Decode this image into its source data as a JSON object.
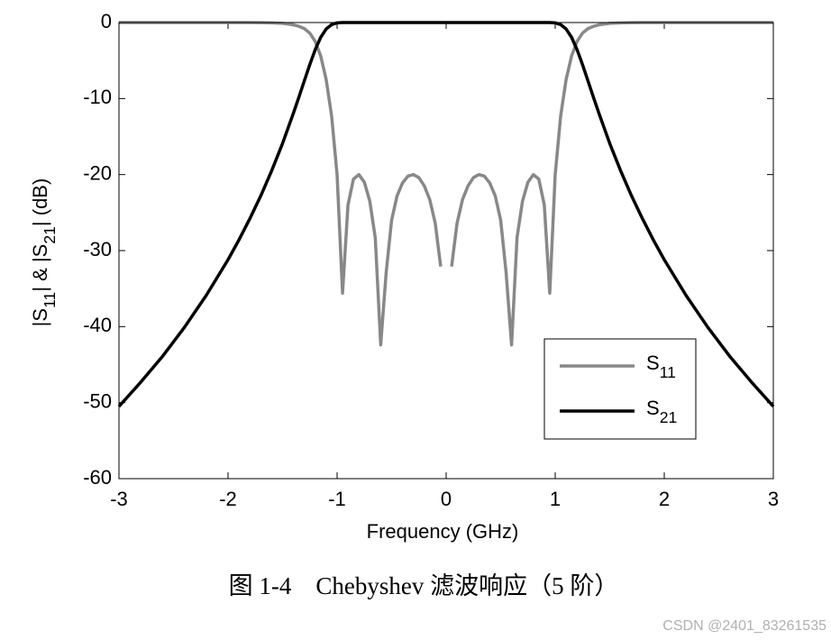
{
  "chart_data": {
    "type": "line",
    "xlabel": "Frequency (GHz)",
    "ylabel": "|S11| & |S21| (dB)",
    "caption": "图 1-4　Chebyshev 滤波响应（5 阶）",
    "watermark": "CSDN @2401_83261535",
    "xlim": [
      -3,
      3
    ],
    "ylim": [
      -60,
      0
    ],
    "xticks": [
      -3,
      -2,
      -1,
      0,
      1,
      2,
      3
    ],
    "yticks": [
      0,
      -10,
      -20,
      -30,
      -40,
      -50,
      -60
    ],
    "grid": false,
    "legend": "lower right",
    "x": [
      -3,
      -2.8,
      -2.6,
      -2.4,
      -2.2,
      -2,
      -1.9,
      -1.8,
      -1.7,
      -1.6,
      -1.5,
      -1.4,
      -1.35,
      -1.3,
      -1.25,
      -1.2,
      -1.15,
      -1.1,
      -1.05,
      -1,
      -0.95,
      -0.9,
      -0.85,
      -0.8,
      -0.75,
      -0.7,
      -0.65,
      -0.6,
      -0.55,
      -0.5,
      -0.45,
      -0.4,
      -0.35,
      -0.3,
      -0.25,
      -0.2,
      -0.15,
      -0.1,
      -0.05,
      0,
      0.05,
      0.1,
      0.15,
      0.2,
      0.25,
      0.3,
      0.35,
      0.4,
      0.45,
      0.5,
      0.55,
      0.6,
      0.65,
      0.7,
      0.75,
      0.8,
      0.85,
      0.9,
      0.95,
      1,
      1.05,
      1.1,
      1.15,
      1.2,
      1.25,
      1.3,
      1.35,
      1.4,
      1.5,
      1.6,
      1.7,
      1.8,
      1.9,
      2,
      2.2,
      2.4,
      2.6,
      2.8,
      3
    ],
    "series": [
      {
        "name": "S11",
        "color": "#888888",
        "values": [
          0,
          0,
          0,
          0,
          0,
          0,
          0,
          0,
          -0.02,
          -0.05,
          -0.1,
          -0.3,
          -0.5,
          -0.8,
          -1.4,
          -2.5,
          -4.4,
          -7.5,
          -12.3,
          -20.0,
          -35.6,
          -24.0,
          -20.6,
          -20.0,
          -21.0,
          -23.5,
          -28.3,
          -42.4,
          -32.9,
          -26.0,
          -22.8,
          -21.1,
          -20.2,
          -20.0,
          -20.4,
          -21.5,
          -23.3,
          -26.4,
          -32.1,
          null,
          -32.1,
          -26.4,
          -23.3,
          -21.5,
          -20.4,
          -20.0,
          -20.2,
          -21.1,
          -22.8,
          -26.0,
          -32.9,
          -42.4,
          -28.3,
          -23.5,
          -21.0,
          -20.0,
          -20.6,
          -24.0,
          -35.6,
          -20.0,
          -12.3,
          -7.5,
          -4.4,
          -2.5,
          -1.4,
          -0.8,
          -0.5,
          -0.3,
          -0.1,
          -0.05,
          -0.02,
          0,
          0,
          0,
          0,
          0,
          0,
          0,
          0
        ]
      },
      {
        "name": "S21",
        "color": "#000000",
        "values": [
          -50.5,
          -47.3,
          -43.9,
          -40.1,
          -35.9,
          -31.2,
          -28.6,
          -25.8,
          -22.8,
          -19.5,
          -15.9,
          -11.9,
          -9.81,
          -7.65,
          -5.52,
          -3.55,
          -1.94,
          -0.85,
          -0.27,
          -0.04,
          0,
          0,
          0,
          0,
          0,
          0,
          0,
          0,
          0,
          0,
          0,
          0,
          0,
          0,
          0,
          0,
          0,
          0,
          0,
          0,
          0,
          0,
          0,
          0,
          0,
          0,
          0,
          0,
          0,
          0,
          0,
          0,
          0,
          0,
          0,
          0,
          0,
          0,
          0,
          -0.04,
          -0.27,
          -0.85,
          -1.94,
          -3.55,
          -5.52,
          -7.65,
          -9.81,
          -11.9,
          -15.9,
          -19.5,
          -22.8,
          -25.8,
          -28.6,
          -31.2,
          -35.9,
          -40.1,
          -43.9,
          -47.3,
          -50.5
        ]
      }
    ]
  }
}
